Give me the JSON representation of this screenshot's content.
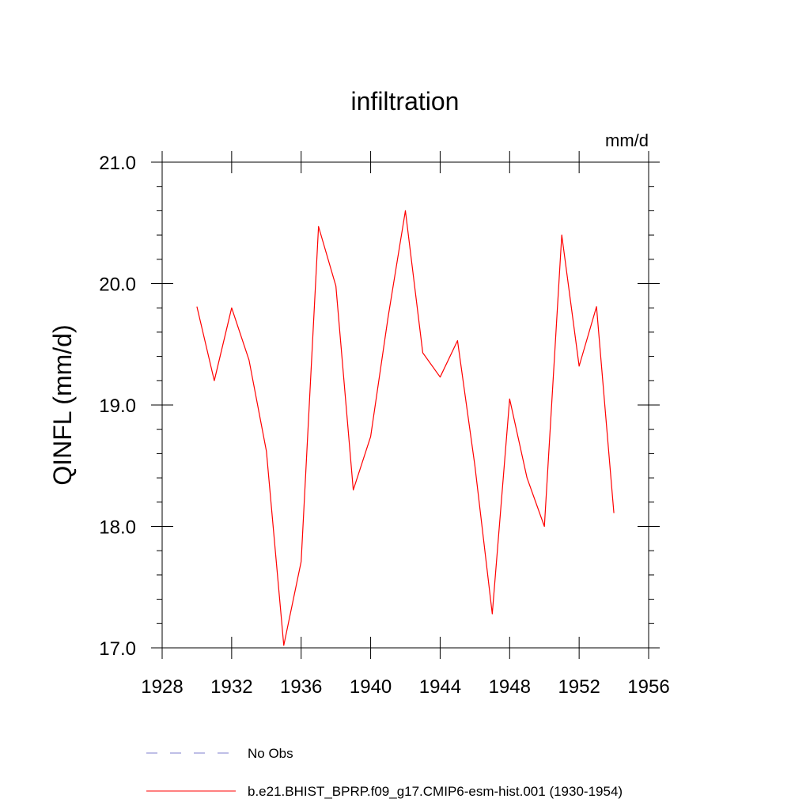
{
  "chart_data": {
    "type": "line",
    "title": "infiltration",
    "units": "mm/d",
    "xlabel": "",
    "ylabel": "QINFL  (mm/d)",
    "xlim": [
      1928,
      1956
    ],
    "ylim": [
      17.0,
      21.0
    ],
    "x_ticks": [
      1928,
      1932,
      1936,
      1940,
      1944,
      1948,
      1952,
      1956
    ],
    "y_ticks": [
      "17.0",
      "18.0",
      "19.0",
      "20.0",
      "21.0"
    ],
    "x": [
      1930,
      1931,
      1932,
      1933,
      1934,
      1935,
      1936,
      1937,
      1938,
      1939,
      1940,
      1941,
      1942,
      1943,
      1944,
      1945,
      1946,
      1947,
      1948,
      1949,
      1950,
      1951,
      1952,
      1953,
      1954
    ],
    "series": [
      {
        "name": "b.e21.BHIST_BPRP.f09_g17.CMIP6-esm-hist.001 (1930-1954)",
        "color": "#ff0000",
        "style": "solid",
        "values": [
          19.81,
          19.2,
          19.8,
          19.37,
          18.62,
          17.02,
          17.71,
          20.47,
          19.98,
          18.3,
          18.74,
          19.72,
          20.6,
          19.43,
          19.23,
          19.53,
          18.5,
          17.28,
          19.05,
          18.4,
          18.0,
          20.4,
          19.32,
          19.81,
          18.11
        ]
      }
    ],
    "legend": [
      {
        "label": "No Obs",
        "color": "#7f7fcf",
        "style": "dashed"
      },
      {
        "label": "b.e21.BHIST_BPRP.f09_g17.CMIP6-esm-hist.001 (1930-1954)",
        "color": "#ff0000",
        "style": "solid"
      }
    ],
    "grid": false,
    "legend_placement": "bottom"
  }
}
